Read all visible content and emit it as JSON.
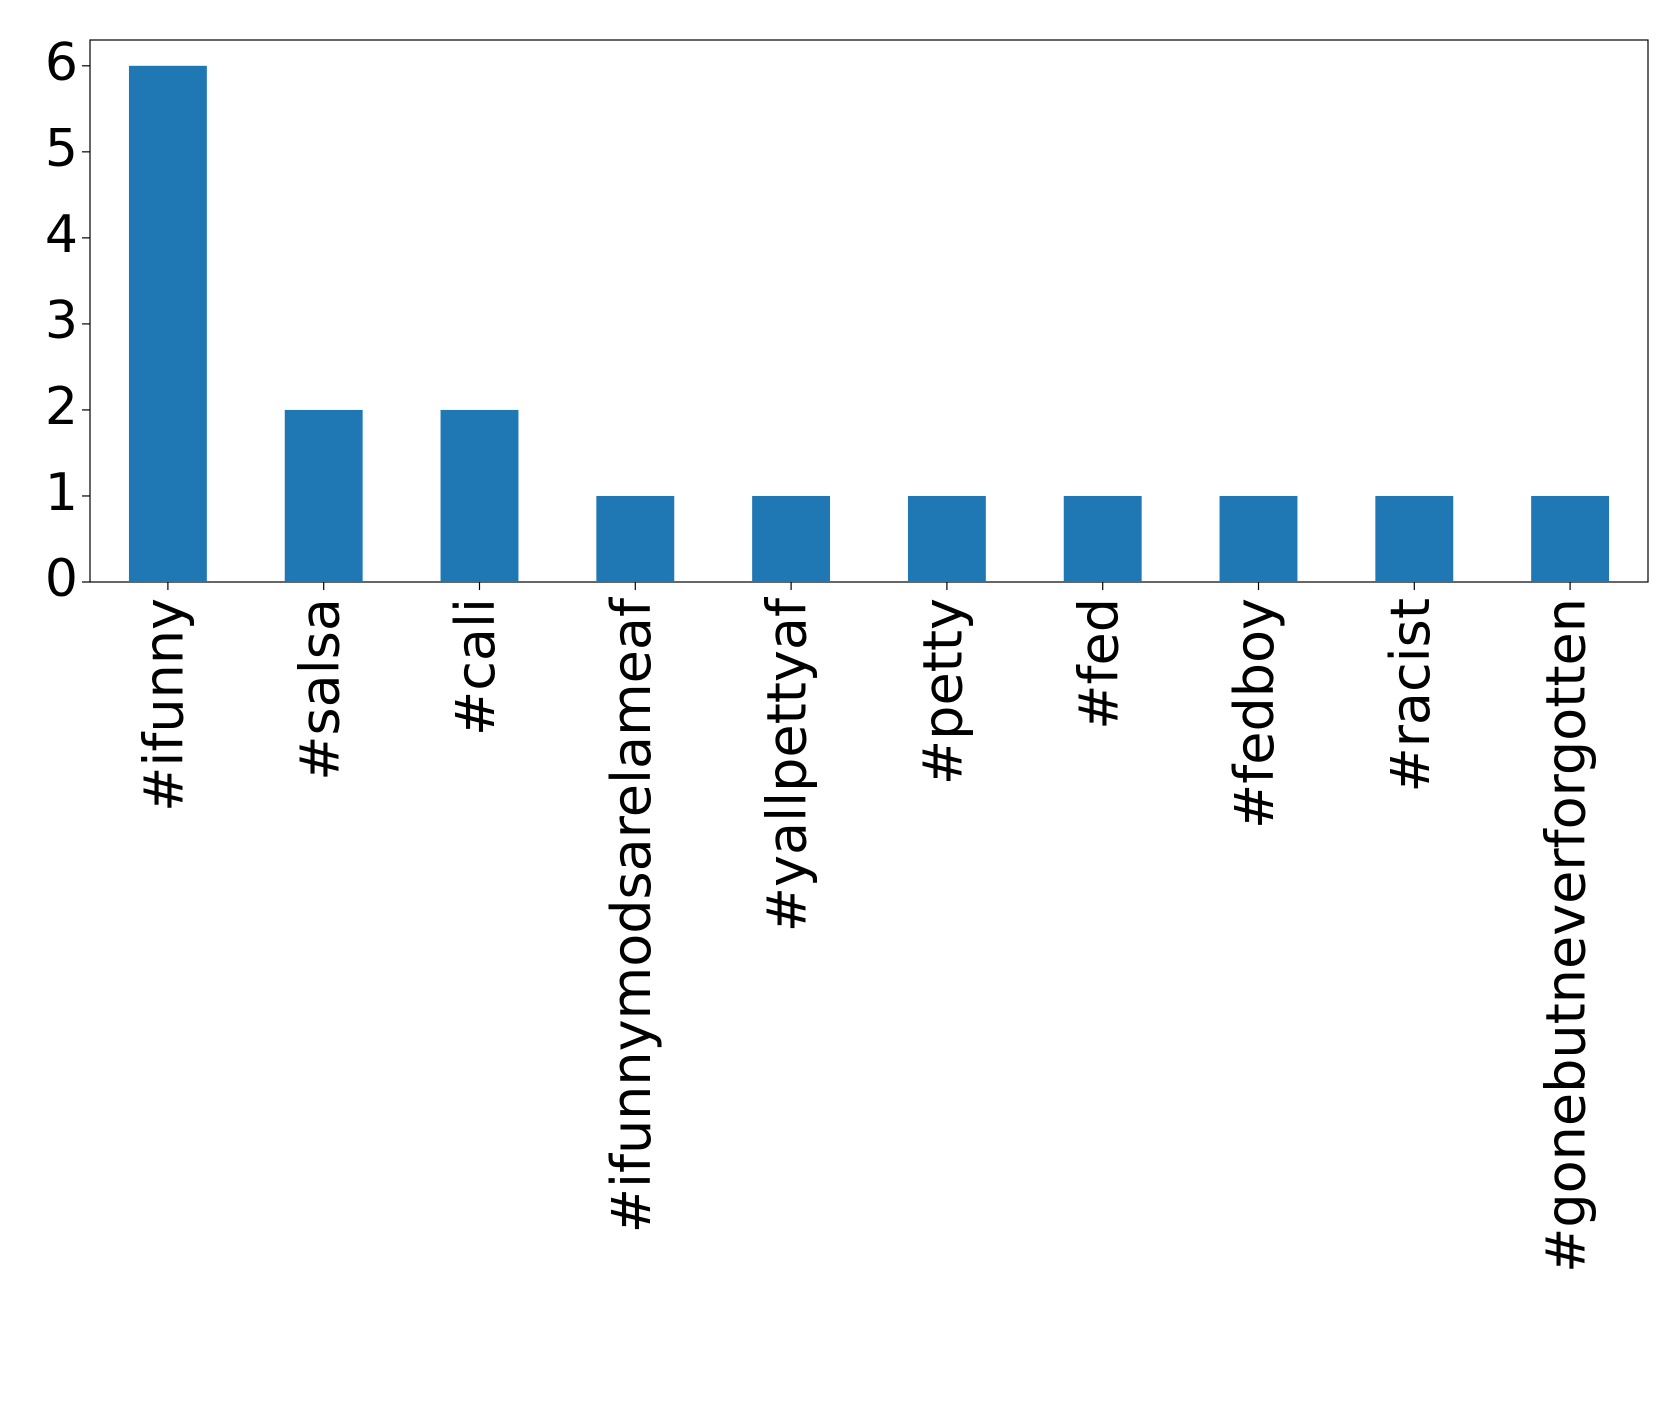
{
  "chart_data": {
    "type": "bar",
    "categories": [
      "#ifunny",
      "#salsa",
      "#cali",
      "#ifunnymodsarelameaf",
      "#yallpettyaf",
      "#petty",
      "#fed",
      "#fedboy",
      "#racist",
      "#gonebutneverforgotten"
    ],
    "values": [
      6,
      2,
      2,
      1,
      1,
      1,
      1,
      1,
      1,
      1
    ],
    "color": "#1f77b4",
    "ylim": [
      0,
      6.3
    ],
    "yticks": [
      0,
      1,
      2,
      3,
      4,
      5,
      6
    ],
    "grid": false
  }
}
